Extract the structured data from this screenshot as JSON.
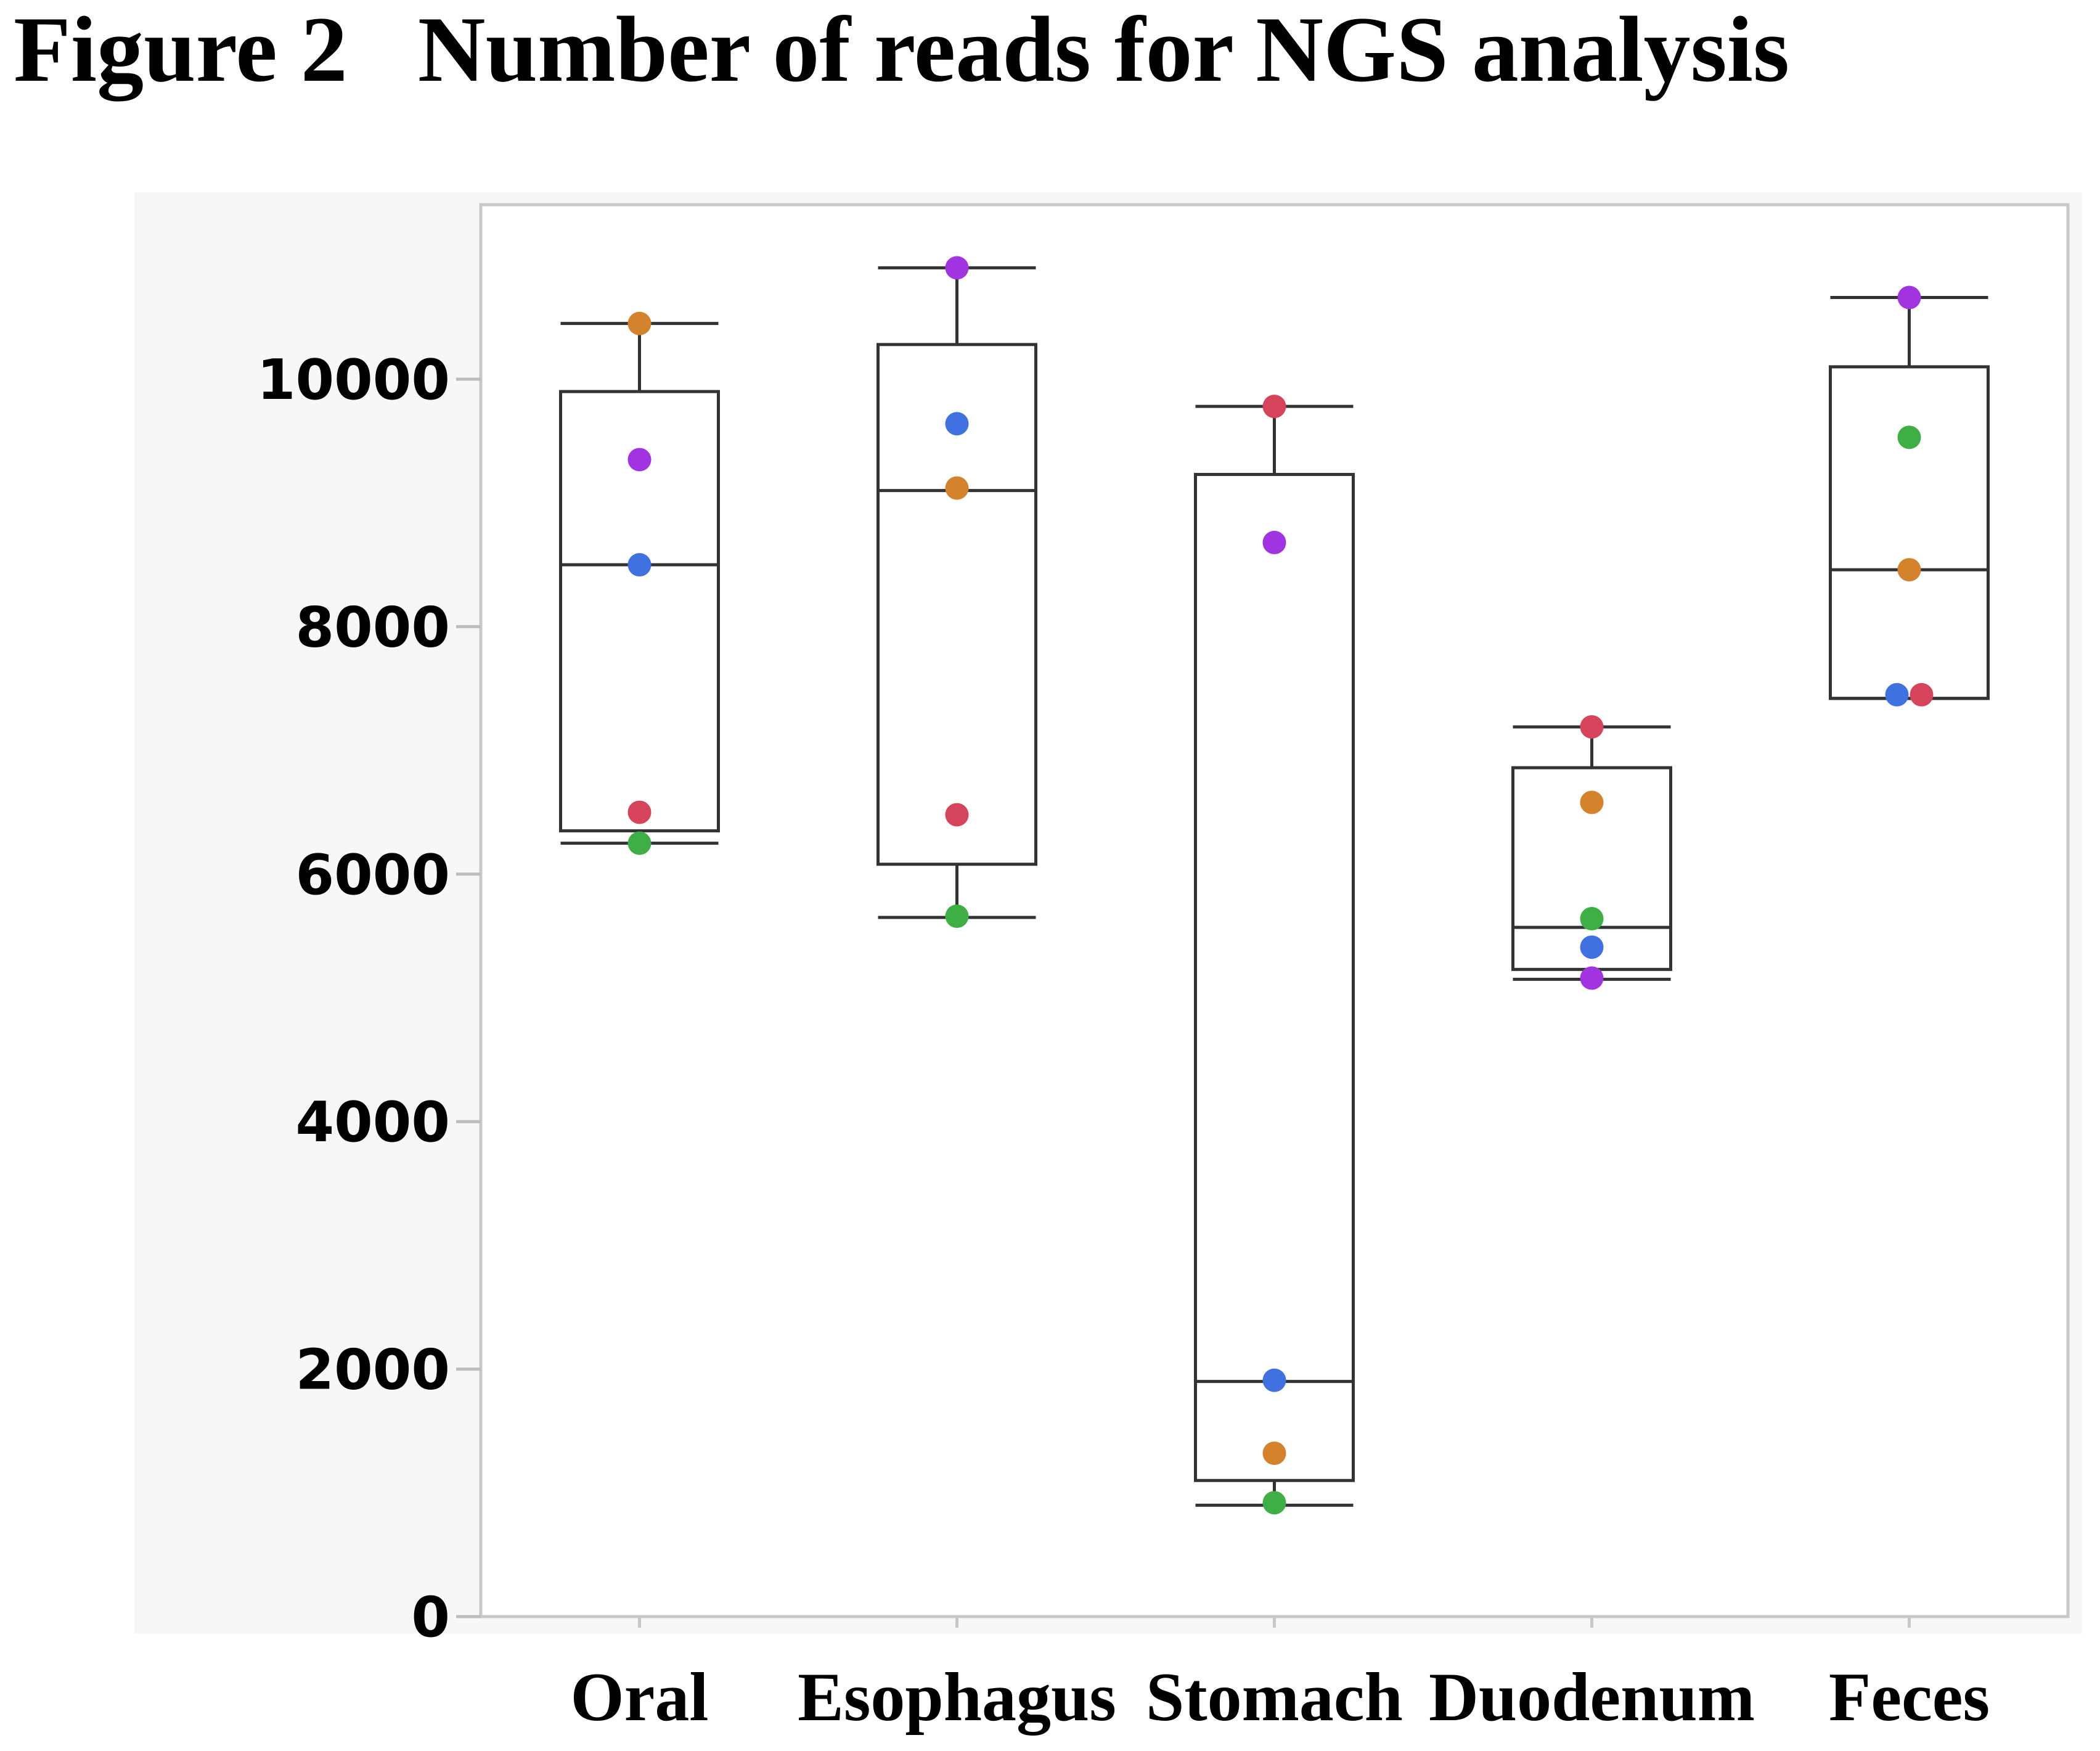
{
  "figure": {
    "title": "Figure 2   Number of reads for NGS analysis"
  },
  "chart_data": {
    "type": "box",
    "title": "",
    "xlabel": "",
    "ylabel": "",
    "ylim": [
      0,
      11500
    ],
    "yticks": [
      0,
      2000,
      4000,
      6000,
      8000,
      10000
    ],
    "grid": false,
    "categories": [
      "Oral",
      "Esophagus",
      "Stomach",
      "Duodenum",
      "Feces"
    ],
    "point_colors": {
      "orange": "#d4822c",
      "purple": "#a233e0",
      "blue": "#3f72e0",
      "red": "#d6445c",
      "green": "#3eaf45"
    },
    "boxes": [
      {
        "category": "Oral",
        "whisker_low": 6250,
        "q1": 6350,
        "median": 8500,
        "q3": 9900,
        "whisker_high": 10450,
        "points": [
          {
            "y": 10450,
            "color": "orange"
          },
          {
            "y": 9350,
            "color": "purple"
          },
          {
            "y": 8500,
            "color": "blue"
          },
          {
            "y": 6500,
            "color": "red"
          },
          {
            "y": 6250,
            "color": "green"
          }
        ]
      },
      {
        "category": "Esophagus",
        "whisker_low": 5650,
        "q1": 6080,
        "median": 9100,
        "q3": 10280,
        "whisker_high": 10900,
        "points": [
          {
            "y": 10900,
            "color": "purple"
          },
          {
            "y": 9640,
            "color": "blue"
          },
          {
            "y": 9120,
            "color": "orange"
          },
          {
            "y": 6480,
            "color": "red"
          },
          {
            "y": 5660,
            "color": "green"
          }
        ]
      },
      {
        "category": "Stomach",
        "whisker_low": 900,
        "q1": 1100,
        "median": 1900,
        "q3": 9230,
        "whisker_high": 9780,
        "points": [
          {
            "y": 9780,
            "color": "red"
          },
          {
            "y": 8680,
            "color": "purple"
          },
          {
            "y": 1910,
            "color": "blue"
          },
          {
            "y": 1320,
            "color": "orange"
          },
          {
            "y": 920,
            "color": "green"
          }
        ]
      },
      {
        "category": "Duodenum",
        "whisker_low": 5150,
        "q1": 5230,
        "median": 5570,
        "q3": 6860,
        "whisker_high": 7190,
        "points": [
          {
            "y": 7190,
            "color": "red"
          },
          {
            "y": 6580,
            "color": "orange"
          },
          {
            "y": 5640,
            "color": "green"
          },
          {
            "y": 5410,
            "color": "blue"
          },
          {
            "y": 5160,
            "color": "purple"
          }
        ]
      },
      {
        "category": "Feces",
        "whisker_low": 7420,
        "q1": 7420,
        "median": 8460,
        "q3": 10100,
        "whisker_high": 10660,
        "points": [
          {
            "y": 10660,
            "color": "purple"
          },
          {
            "y": 9530,
            "color": "green"
          },
          {
            "y": 8460,
            "color": "orange"
          },
          {
            "y": 7450,
            "color": "blue",
            "jitter": -1
          },
          {
            "y": 7450,
            "color": "red",
            "jitter": 1
          }
        ]
      }
    ]
  }
}
